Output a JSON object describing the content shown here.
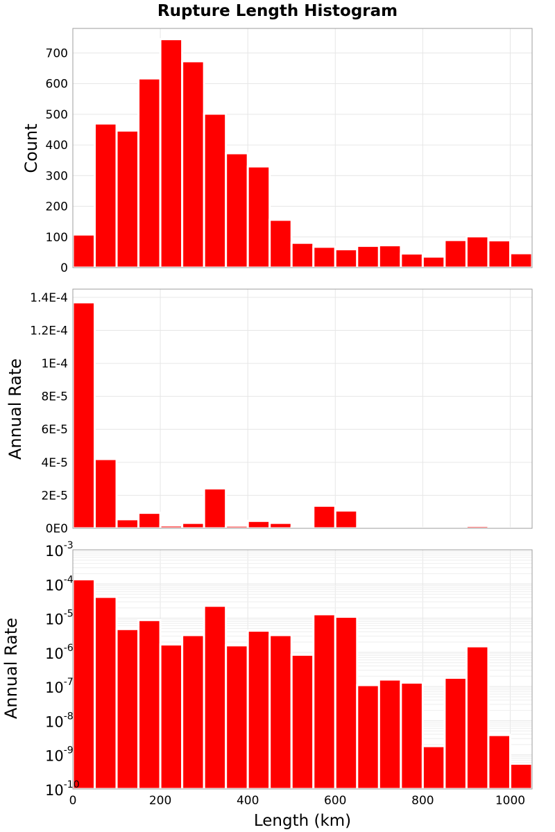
{
  "colors": {
    "bar": "#ff0000",
    "bar_stroke": "#ffffff"
  },
  "chart_data": {
    "title": "Rupture Length Histogram",
    "xlabel": "Length (km)",
    "type": "bar",
    "bin_width": 50,
    "x_start": 0,
    "xlim": [
      0,
      1050
    ],
    "x_ticks": [
      0,
      200,
      400,
      600,
      800,
      1000
    ],
    "x_tick_labels": [
      "0",
      "200",
      "400",
      "600",
      "800",
      "1000"
    ],
    "panels": [
      {
        "name": "count",
        "type": "bar",
        "ylabel": "Count",
        "scale": "linear",
        "ylim": [
          0,
          780
        ],
        "y_ticks": [
          0,
          100,
          200,
          300,
          400,
          500,
          600,
          700
        ],
        "y_tick_labels": [
          "0",
          "100",
          "200",
          "300",
          "400",
          "500",
          "600",
          "700"
        ],
        "values": [
          108,
          470,
          447,
          617,
          745,
          673,
          502,
          373,
          330,
          156,
          81,
          68,
          60,
          71,
          73,
          46,
          36,
          90,
          102,
          89,
          47
        ]
      },
      {
        "name": "rate-linear",
        "type": "bar",
        "ylabel": "Annual Rate",
        "scale": "linear",
        "ylim": [
          0,
          0.000145
        ],
        "y_ticks": [
          0,
          2e-05,
          4e-05,
          6e-05,
          8e-05,
          0.0001,
          0.00012,
          0.00014
        ],
        "y_tick_labels": [
          "0E0",
          "2E-5",
          "4E-5",
          "6E-5",
          "8E-5",
          "1E-4",
          "1.2E-4",
          "1.4E-4"
        ],
        "values": [
          0.000137,
          4.2e-05,
          5.5e-06,
          9.4e-06,
          1.7e-06,
          3.3e-06,
          2.42e-05,
          1.6e-06,
          4.5e-06,
          3.3e-06,
          8e-07,
          1.37e-05,
          1.08e-05,
          1.2e-07,
          1.6e-07,
          1.3e-07,
          2e-09,
          1.8e-07,
          1.5e-06,
          4e-09,
          5e-10
        ]
      },
      {
        "name": "rate-log",
        "type": "bar",
        "ylabel": "Annual Rate",
        "scale": "log",
        "ylim": [
          1e-10,
          0.001
        ],
        "y_ticks": [
          -10,
          -9,
          -8,
          -7,
          -6,
          -5,
          -4,
          -3
        ],
        "y_tick_base": "10",
        "y_tick_exponents": [
          "-10",
          "-9",
          "-8",
          "-7",
          "-6",
          "-5",
          "-4",
          "-3"
        ],
        "values": [
          0.000137,
          4.2e-05,
          4.8e-06,
          8.8e-06,
          1.7e-06,
          3.2e-06,
          2.3e-05,
          1.6e-06,
          4.3e-06,
          3.2e-06,
          8.5e-07,
          1.3e-05,
          1.1e-05,
          1.1e-07,
          1.6e-07,
          1.3e-07,
          1.8e-09,
          1.8e-07,
          1.5e-06,
          3.8e-09,
          5.5e-10
        ]
      }
    ]
  }
}
